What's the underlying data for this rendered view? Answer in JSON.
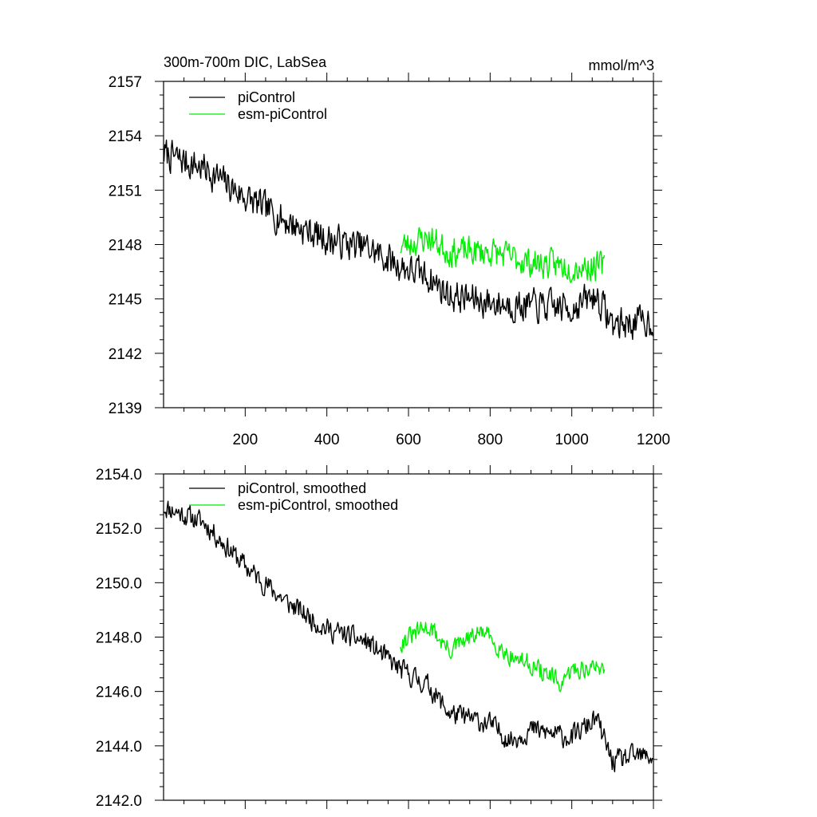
{
  "chart_data": [
    {
      "type": "line",
      "title": "300m-700m DIC, LabSea",
      "units": "mmol/m^3",
      "xlabel": "",
      "ylabel": "",
      "xlim": [
        0,
        1200
      ],
      "ylim": [
        2139,
        2157
      ],
      "x_ticks": [
        200,
        400,
        600,
        800,
        1000,
        1200
      ],
      "x_tick_labels": [
        "200",
        "400",
        "600",
        "800",
        "1000",
        "1200"
      ],
      "y_ticks": [
        2139,
        2142,
        2145,
        2148,
        2151,
        2154,
        2157
      ],
      "y_tick_labels": [
        "2139",
        "2142",
        "2145",
        "2148",
        "2151",
        "2154",
        "2157"
      ],
      "legend_position": "top-left",
      "series": [
        {
          "name": "piControl",
          "color": "#000000",
          "x_start": 1,
          "x_end": 1200,
          "anchors": [
            [
              1,
              2153.0
            ],
            [
              100,
              2152.2
            ],
            [
              200,
              2150.6
            ],
            [
              300,
              2149.3
            ],
            [
              400,
              2148.3
            ],
            [
              500,
              2147.8
            ],
            [
              580,
              2146.8
            ],
            [
              650,
              2146.2
            ],
            [
              700,
              2145.2
            ],
            [
              800,
              2144.8
            ],
            [
              900,
              2144.6
            ],
            [
              1000,
              2144.5
            ],
            [
              1060,
              2145.2
            ],
            [
              1100,
              2143.6
            ],
            [
              1200,
              2143.8
            ]
          ],
          "noise": 1.0,
          "seed": 7
        },
        {
          "name": "esm-piControl",
          "color": "#00ee00",
          "x_start": 580,
          "x_end": 1080,
          "anchors": [
            [
              580,
              2147.9
            ],
            [
              650,
              2148.4
            ],
            [
              700,
              2147.6
            ],
            [
              800,
              2147.6
            ],
            [
              900,
              2147.0
            ],
            [
              1000,
              2146.8
            ],
            [
              1080,
              2146.8
            ]
          ],
          "noise": 0.9,
          "seed": 23
        }
      ]
    },
    {
      "type": "line",
      "title": "",
      "xlabel": "",
      "ylabel": "",
      "xlim": [
        0,
        1200
      ],
      "ylim": [
        2142.0,
        2154.0
      ],
      "x_ticks": [
        200,
        400,
        600,
        800,
        1000,
        1200
      ],
      "x_tick_labels": [],
      "y_ticks": [
        2142.0,
        2144.0,
        2146.0,
        2148.0,
        2150.0,
        2152.0,
        2154.0
      ],
      "y_tick_labels": [
        "2142.0",
        "2144.0",
        "2146.0",
        "2148.0",
        "2150.0",
        "2152.0",
        "2154.0"
      ],
      "legend_position": "top-left",
      "series": [
        {
          "name": "piControl, smoothed",
          "color": "#000000",
          "x_start": 1,
          "x_end": 1200,
          "anchors": [
            [
              1,
              2152.8
            ],
            [
              100,
              2152.2
            ],
            [
              200,
              2150.6
            ],
            [
              300,
              2149.3
            ],
            [
              400,
              2148.3
            ],
            [
              500,
              2147.8
            ],
            [
              580,
              2146.8
            ],
            [
              650,
              2146.2
            ],
            [
              700,
              2145.2
            ],
            [
              800,
              2144.8
            ],
            [
              850,
              2144.2
            ],
            [
              900,
              2144.6
            ],
            [
              1000,
              2144.3
            ],
            [
              1060,
              2145.0
            ],
            [
              1100,
              2143.4
            ],
            [
              1150,
              2143.6
            ],
            [
              1200,
              2143.6
            ]
          ],
          "noise": 0.45,
          "seed": 11
        },
        {
          "name": "esm-piControl, smoothed",
          "color": "#00ee00",
          "x_start": 580,
          "x_end": 1080,
          "anchors": [
            [
              580,
              2147.8
            ],
            [
              650,
              2148.4
            ],
            [
              700,
              2147.5
            ],
            [
              780,
              2148.2
            ],
            [
              850,
              2147.3
            ],
            [
              900,
              2147.0
            ],
            [
              980,
              2146.2
            ],
            [
              1000,
              2146.8
            ],
            [
              1080,
              2146.9
            ]
          ],
          "noise": 0.4,
          "seed": 31
        }
      ]
    }
  ]
}
